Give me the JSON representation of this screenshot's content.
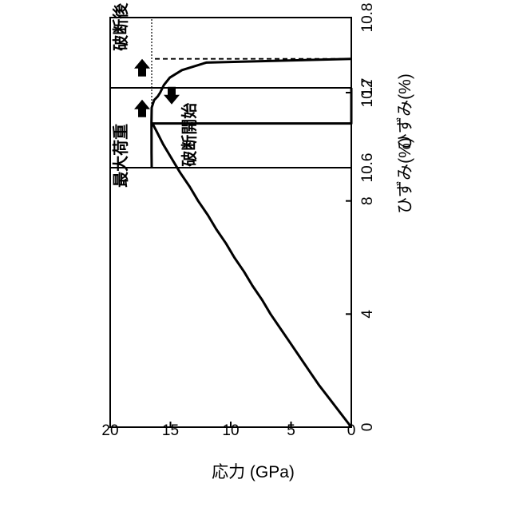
{
  "chart_data": [
    {
      "type": "line",
      "xlabel": "ひずみ(%)",
      "ylabel": "応力 (GPa)",
      "xlim": [
        0,
        12
      ],
      "ylim": [
        0,
        20
      ],
      "xticks": [
        0,
        4,
        8,
        12
      ],
      "yticks": [
        0,
        5,
        10,
        15,
        20
      ],
      "grid": false,
      "series": [
        {
          "x": [
            0,
            0.5,
            1,
            1.5,
            2,
            2.5,
            3,
            3.5,
            4,
            4.5,
            5,
            5.5,
            6,
            6.5,
            7,
            7.5,
            8,
            8.5,
            9,
            9.5,
            10,
            10.5,
            10.74,
            10.74,
            12
          ],
          "values": [
            0,
            0.9,
            1.8,
            2.7,
            3.5,
            4.3,
            5.1,
            5.9,
            6.7,
            7.4,
            8.2,
            8.9,
            9.7,
            10.4,
            11.2,
            11.9,
            12.7,
            13.4,
            14.2,
            14.9,
            15.6,
            16.2,
            16.5,
            0,
            0
          ]
        }
      ]
    },
    {
      "type": "line",
      "xlabel": "ひずみ(%)",
      "xlim": [
        10.6,
        10.8
      ],
      "xticks": [
        10.6,
        10.7,
        10.8
      ],
      "grid": false,
      "annotations": [
        "最大荷重",
        "破断開始",
        "破断後"
      ],
      "series": [
        {
          "x": [
            10.6,
            10.62,
            10.64,
            10.66,
            10.68,
            10.69,
            10.695,
            10.7,
            10.71,
            10.72,
            10.73,
            10.74,
            10.745
          ],
          "values": [
            16.5,
            16.51,
            16.51,
            16.52,
            16.5,
            16.3,
            16.0,
            15.8,
            15.5,
            15.0,
            14.0,
            12.0,
            0
          ]
        }
      ]
    }
  ]
}
